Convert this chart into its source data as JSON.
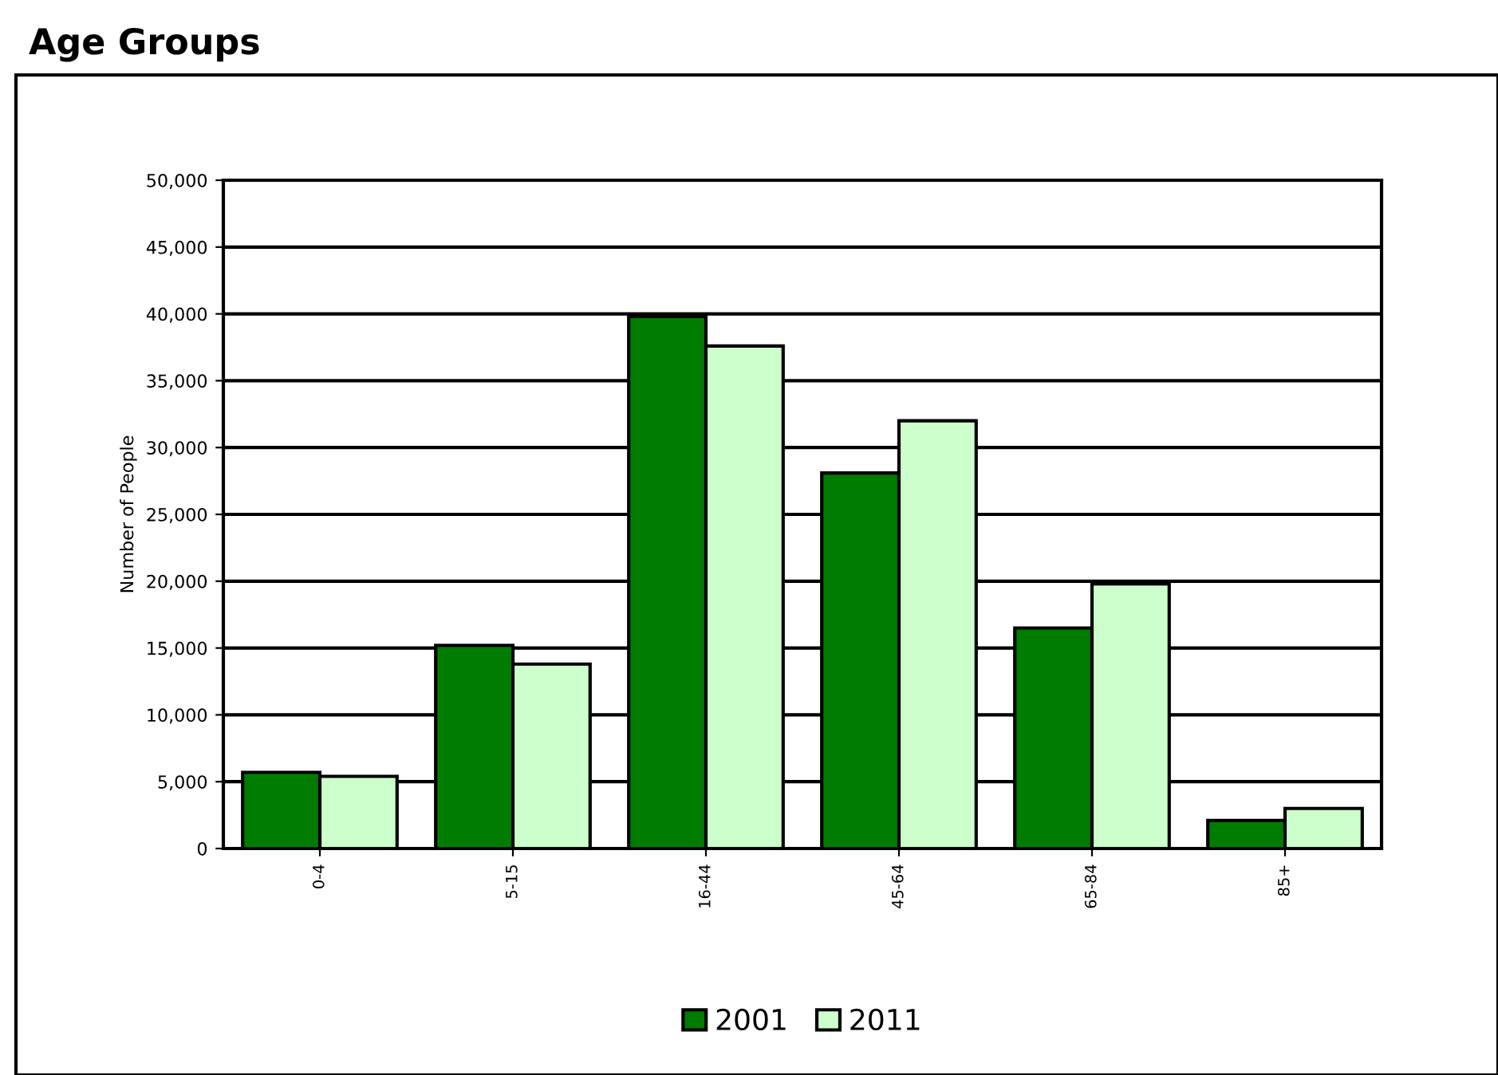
{
  "chart_data": {
    "type": "bar",
    "title": "Age Groups",
    "ylabel": "Number of People",
    "categories": [
      "0-4",
      "5-15",
      "16-44",
      "45-64",
      "65-84",
      "85+"
    ],
    "series": [
      {
        "name": "2001",
        "color": "#007c00",
        "values": [
          5700,
          15200,
          39800,
          28100,
          16500,
          2100
        ]
      },
      {
        "name": "2011",
        "color": "#ccffcc",
        "values": [
          5400,
          13800,
          37600,
          32000,
          19800,
          3000
        ]
      }
    ],
    "ylim": [
      0,
      50000
    ],
    "yticks": [
      {
        "value": 0,
        "label": "0"
      },
      {
        "value": 5000,
        "label": "5,000"
      },
      {
        "value": 10000,
        "label": "10,000"
      },
      {
        "value": 15000,
        "label": "15,000"
      },
      {
        "value": 20000,
        "label": "20,000"
      },
      {
        "value": 25000,
        "label": "25,000"
      },
      {
        "value": 30000,
        "label": "30,000"
      },
      {
        "value": 35000,
        "label": "35,000"
      },
      {
        "value": 40000,
        "label": "40,000"
      },
      {
        "value": 45000,
        "label": "45,000"
      },
      {
        "value": 50000,
        "label": "50,000"
      }
    ],
    "grid": "y",
    "legend": "bottom"
  }
}
